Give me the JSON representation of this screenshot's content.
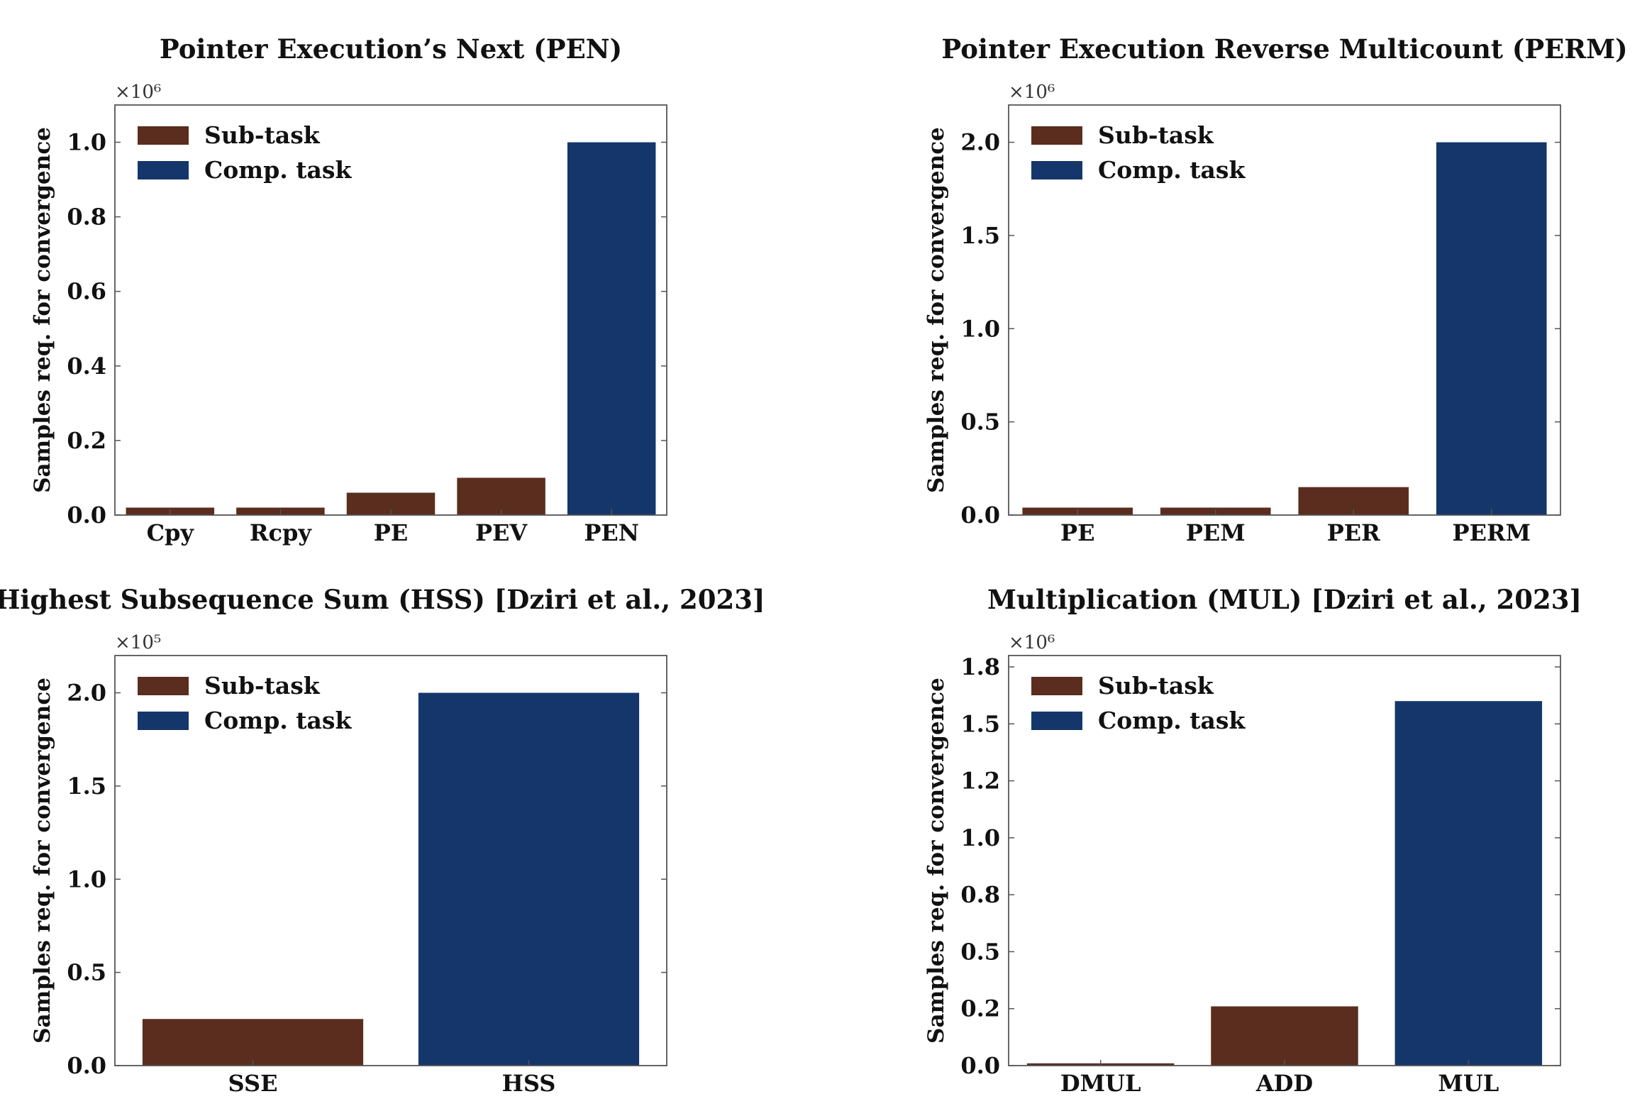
{
  "colors": {
    "sub_task": "#5a2d1f",
    "comp_task": "#14366b"
  },
  "legend": {
    "sub_task": "Sub-task",
    "comp_task": "Comp. task"
  },
  "chart_data": [
    {
      "type": "bar",
      "title": "Pointer Execution’s Next (PEN)",
      "ylabel": "Samples req. for convergence",
      "multiplier": "×10⁶",
      "categories": [
        "Cpy",
        "Rcpy",
        "PE",
        "PEV",
        "PEN"
      ],
      "values": [
        0.02,
        0.02,
        0.06,
        0.1,
        1.0
      ],
      "kinds": [
        "sub",
        "sub",
        "sub",
        "sub",
        "comp"
      ],
      "ylim": [
        0,
        1.1
      ],
      "yticks": [
        0.0,
        0.2,
        0.4,
        0.6,
        0.8,
        1.0
      ],
      "ytick_labels": [
        "0.0",
        "0.2",
        "0.4",
        "0.6",
        "0.8",
        "1.0"
      ],
      "legend_position": "top-left",
      "grid": false
    },
    {
      "type": "bar",
      "title": "Pointer Execution Reverse Multicount (PERM)",
      "ylabel": "Samples req. for convergence",
      "multiplier": "×10⁶",
      "categories": [
        "PE",
        "PEM",
        "PER",
        "PERM"
      ],
      "values": [
        0.04,
        0.04,
        0.15,
        2.0
      ],
      "kinds": [
        "sub",
        "sub",
        "sub",
        "comp"
      ],
      "ylim": [
        0,
        2.2
      ],
      "yticks": [
        0.0,
        0.5,
        1.0,
        1.5,
        2.0
      ],
      "ytick_labels": [
        "0.0",
        "0.5",
        "1.0",
        "1.5",
        "2.0"
      ],
      "legend_position": "top-left",
      "grid": false
    },
    {
      "type": "bar",
      "title": "Highest Subsequence Sum (HSS) [Dziri et al., 2023]",
      "ylabel": "Samples req. for convergence",
      "multiplier": "×10⁵",
      "categories": [
        "SSE",
        "HSS"
      ],
      "values": [
        0.25,
        2.0
      ],
      "kinds": [
        "sub",
        "comp"
      ],
      "ylim": [
        0,
        2.2
      ],
      "yticks": [
        0.0,
        0.5,
        1.0,
        1.5,
        2.0
      ],
      "ytick_labels": [
        "0.0",
        "0.5",
        "1.0",
        "1.5",
        "2.0"
      ],
      "legend_position": "top-left",
      "grid": false
    },
    {
      "type": "bar",
      "title": "Multiplication (MUL) [Dziri et al., 2023]",
      "ylabel": "Samples req. for convergence",
      "multiplier": "×10⁶",
      "categories": [
        "DMUL",
        "ADD",
        "MUL"
      ],
      "values": [
        0.01,
        0.26,
        1.6
      ],
      "kinds": [
        "sub",
        "sub",
        "comp"
      ],
      "ylim": [
        0,
        1.8
      ],
      "yticks": [
        0.0,
        0.25,
        0.5,
        0.75,
        1.0,
        1.25,
        1.5,
        1.75
      ],
      "ytick_labels": [
        "0.0",
        "0.2",
        "0.5",
        "0.8",
        "1.0",
        "1.2",
        "1.5",
        "1.8"
      ],
      "legend_position": "top-left",
      "grid": false
    }
  ]
}
